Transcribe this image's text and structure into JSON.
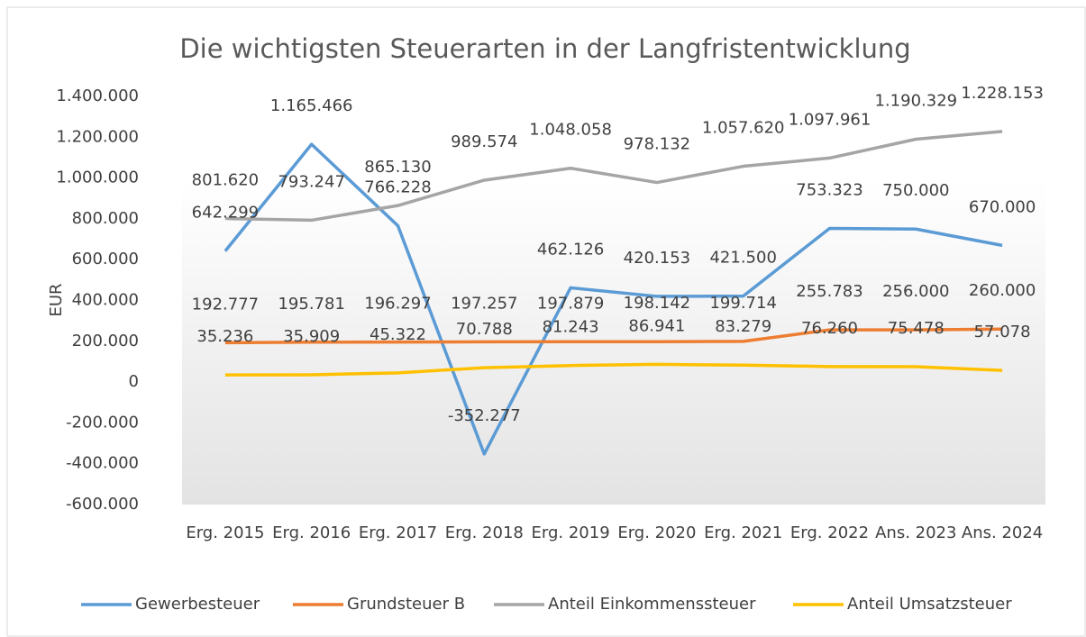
{
  "chart_data": {
    "type": "line",
    "title": "Die wichtigsten Steuerarten in der Langfristentwicklung",
    "y_label": "EUR",
    "categories": [
      "Erg. 2015",
      "Erg. 2016",
      "Erg. 2017",
      "Erg. 2018",
      "Erg. 2019",
      "Erg. 2020",
      "Erg. 2021",
      "Erg. 2022",
      "Ans. 2023",
      "Ans. 2024"
    ],
    "series": [
      {
        "name": "Gewerbesteuer",
        "color": "#5b9bd5",
        "values": [
          642299,
          1165466,
          766228,
          -352277,
          462126,
          420153,
          421500,
          753323,
          750000,
          670000
        ],
        "value_labels": [
          "642.299",
          "1.165.466",
          "766.228",
          "-352.277",
          "462.126",
          "420.153",
          "421.500",
          "753.323",
          "750.000",
          "670.000"
        ]
      },
      {
        "name": "Grundsteuer B",
        "color": "#ed7d31",
        "values": [
          192777,
          195781,
          196297,
          197257,
          197879,
          198142,
          199714,
          255783,
          256000,
          260000
        ],
        "value_labels": [
          "192.777",
          "195.781",
          "196.297",
          "197.257",
          "197.879",
          "198.142",
          "199.714",
          "255.783",
          "256.000",
          "260.000"
        ]
      },
      {
        "name": "Anteil Einkommenssteuer",
        "color": "#a5a5a5",
        "values": [
          801620,
          793247,
          865130,
          989574,
          1048058,
          978132,
          1057620,
          1097961,
          1190329,
          1228153
        ],
        "value_labels": [
          "801.620",
          "793.247",
          "865.130",
          "989.574",
          "1.048.058",
          "978.132",
          "1.057.620",
          "1.097.961",
          "1.190.329",
          "1.228.153"
        ]
      },
      {
        "name": "Anteil Umsatzsteuer",
        "color": "#ffc000",
        "values": [
          35236,
          35909,
          45322,
          70788,
          81243,
          86941,
          83279,
          76260,
          75478,
          57078
        ],
        "value_labels": [
          "35.236",
          "35.909",
          "45.322",
          "70.788",
          "81.243",
          "86.941",
          "83.279",
          "76.260",
          "75.478",
          "57.078"
        ]
      }
    ],
    "ylim": [
      -600000,
      1400000
    ],
    "yticks": [
      {
        "value": -600000,
        "label": "-600.000"
      },
      {
        "value": -400000,
        "label": "-400.000"
      },
      {
        "value": -200000,
        "label": "-200.000"
      },
      0,
      {
        "value": 200000,
        "label": "200.000"
      },
      {
        "value": 400000,
        "label": "400.000"
      },
      {
        "value": 600000,
        "label": "600.000"
      },
      {
        "value": 800000,
        "label": "800.000"
      },
      {
        "value": 1000000,
        "label": "1.000.000"
      },
      {
        "value": 1200000,
        "label": "1.200.000"
      },
      {
        "value": 1400000,
        "label": "1.400.000"
      }
    ],
    "grid": false,
    "legend": "bottom"
  }
}
